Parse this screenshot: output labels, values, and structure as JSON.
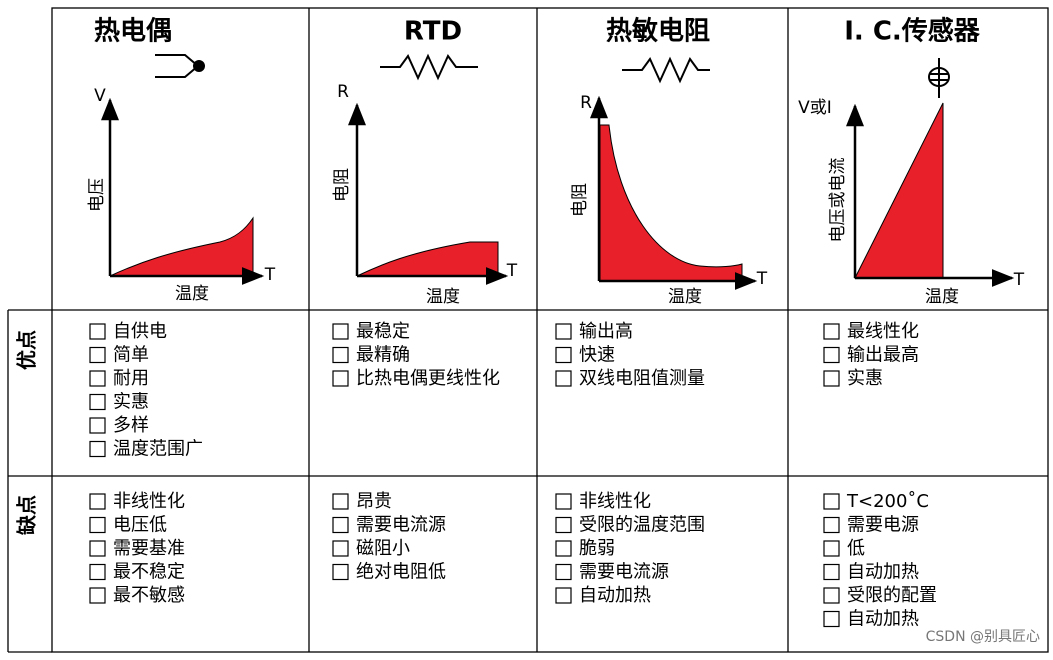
{
  "row_labels": [
    "优点",
    "缺点"
  ],
  "columns": [
    {
      "title": "热电偶",
      "graph": {
        "y_axis": "V",
        "y_label": "电压",
        "x_axis": "T",
        "x_label": "温度"
      },
      "pros": [
        "自供电",
        "简单",
        "耐用",
        "实惠",
        "多样",
        "温度范围广"
      ],
      "cons": [
        "非线性化",
        "电压低",
        "需要基准",
        "最不稳定",
        "最不敏感"
      ]
    },
    {
      "title": "RTD",
      "graph": {
        "y_axis": "R",
        "y_label": "电阻",
        "x_axis": "T",
        "x_label": "温度"
      },
      "pros": [
        "最稳定",
        "最精确",
        "比热电偶更线性化"
      ],
      "cons": [
        "昂贵",
        "需要电流源",
        "磁阻小",
        "绝对电阻低"
      ]
    },
    {
      "title": "热敏电阻",
      "graph": {
        "y_axis": "R",
        "y_label": "电阻",
        "x_axis": "T",
        "x_label": "温度"
      },
      "pros": [
        "输出高",
        "快速",
        "双线电阻值测量"
      ],
      "cons": [
        "非线性化",
        "受限的温度范围",
        "脆弱",
        "需要电流源",
        "自动加热"
      ]
    },
    {
      "title": "I. C.传感器",
      "graph": {
        "y_axis": "V或I",
        "y_label": "电压或电流",
        "x_axis": "T",
        "x_label": "温度"
      },
      "pros": [
        "最线性化",
        "输出最高",
        "实惠"
      ],
      "cons": [
        "T<200˚C",
        "需要电源",
        "低",
        "自动加热",
        "受限的配置",
        "自动加热"
      ]
    }
  ],
  "watermark": "CSDN @别具匠心"
}
